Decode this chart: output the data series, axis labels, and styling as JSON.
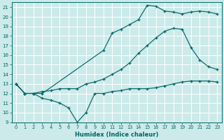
{
  "xlabel": "Humidex (Indice chaleur)",
  "bg_color": "#cceaea",
  "line_color": "#006666",
  "grid_color": "#ffffff",
  "xlim": [
    -0.5,
    23.5
  ],
  "ylim": [
    9,
    21.5
  ],
  "xticks": [
    0,
    1,
    2,
    3,
    4,
    5,
    6,
    7,
    8,
    9,
    10,
    11,
    12,
    13,
    14,
    15,
    16,
    17,
    18,
    19,
    20,
    21,
    22,
    23
  ],
  "yticks": [
    9,
    10,
    11,
    12,
    13,
    14,
    15,
    16,
    17,
    18,
    19,
    20,
    21
  ],
  "line1_x": [
    0,
    1,
    2,
    3,
    10,
    11,
    12,
    13,
    14,
    15,
    16,
    17,
    18,
    19,
    20,
    21,
    22,
    23
  ],
  "line1_y": [
    13,
    12,
    12,
    12,
    16.5,
    18.3,
    18.7,
    19.2,
    19.7,
    21.2,
    21.1,
    20.6,
    20.5,
    20.3,
    20.5,
    20.6,
    20.5,
    20.3
  ],
  "line2_x": [
    0,
    1,
    2,
    3,
    4,
    5,
    6,
    7,
    8,
    9,
    10,
    11,
    12,
    13,
    14,
    15,
    16,
    17,
    18,
    19,
    20,
    21,
    22,
    23
  ],
  "line2_y": [
    13,
    12,
    12,
    12.2,
    12.3,
    12.5,
    12.5,
    12.5,
    13.0,
    13.2,
    13.5,
    14.0,
    14.5,
    15.2,
    16.2,
    17.0,
    17.8,
    18.5,
    18.8,
    18.7,
    16.8,
    15.5,
    14.8,
    14.5
  ],
  "line3_x": [
    0,
    1,
    2,
    3,
    4,
    5,
    6,
    7,
    8,
    9,
    10,
    11,
    12,
    13,
    14,
    15,
    16,
    17,
    18,
    19,
    20,
    21,
    22,
    23
  ],
  "line3_y": [
    13,
    12,
    12,
    11.5,
    11.3,
    11.0,
    10.5,
    9.0,
    10.0,
    12.0,
    12.0,
    12.2,
    12.3,
    12.5,
    12.5,
    12.5,
    12.6,
    12.8,
    13.0,
    13.2,
    13.3,
    13.3,
    13.3,
    13.2
  ]
}
